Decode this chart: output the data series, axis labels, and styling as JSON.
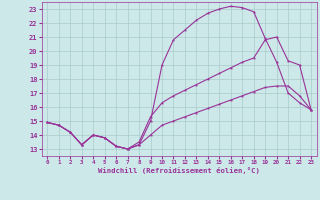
{
  "background_color": "#cce8e8",
  "grid_color": "#aacccc",
  "line_color": "#993399",
  "xlabel": "Windchill (Refroidissement éolien,°C)",
  "ylabel_ticks": [
    13,
    14,
    15,
    16,
    17,
    18,
    19,
    20,
    21,
    22,
    23
  ],
  "xlabel_ticks": [
    0,
    1,
    2,
    3,
    4,
    5,
    6,
    7,
    8,
    9,
    10,
    11,
    12,
    13,
    14,
    15,
    16,
    17,
    18,
    19,
    20,
    21,
    22,
    23
  ],
  "xlim": [
    -0.5,
    23.5
  ],
  "ylim": [
    12.5,
    23.5
  ],
  "series1_x": [
    0,
    1,
    2,
    3,
    4,
    5,
    6,
    7,
    8,
    9,
    10,
    11,
    12,
    13,
    14,
    15,
    16,
    17,
    18,
    19,
    20,
    21,
    22,
    23
  ],
  "series1_y": [
    14.9,
    14.7,
    14.2,
    13.3,
    14.0,
    13.8,
    13.2,
    13.0,
    13.3,
    15.0,
    19.0,
    20.8,
    21.5,
    22.2,
    22.7,
    23.0,
    23.2,
    23.1,
    22.8,
    20.9,
    19.2,
    17.0,
    16.3,
    15.8
  ],
  "series2_x": [
    0,
    1,
    2,
    3,
    4,
    5,
    6,
    7,
    8,
    9,
    10,
    11,
    12,
    13,
    14,
    15,
    16,
    17,
    18,
    19,
    20,
    21,
    22,
    23
  ],
  "series2_y": [
    14.9,
    14.7,
    14.2,
    13.3,
    14.0,
    13.8,
    13.2,
    13.0,
    13.5,
    15.3,
    16.3,
    16.8,
    17.2,
    17.6,
    18.0,
    18.4,
    18.8,
    19.2,
    19.5,
    20.8,
    21.0,
    19.3,
    19.0,
    15.8
  ],
  "series3_x": [
    0,
    1,
    2,
    3,
    4,
    5,
    6,
    7,
    8,
    9,
    10,
    11,
    12,
    13,
    14,
    15,
    16,
    17,
    18,
    19,
    20,
    21,
    22,
    23
  ],
  "series3_y": [
    14.9,
    14.7,
    14.2,
    13.3,
    14.0,
    13.8,
    13.2,
    13.0,
    13.3,
    14.0,
    14.7,
    15.0,
    15.3,
    15.6,
    15.9,
    16.2,
    16.5,
    16.8,
    17.1,
    17.4,
    17.5,
    17.5,
    16.8,
    15.8
  ]
}
